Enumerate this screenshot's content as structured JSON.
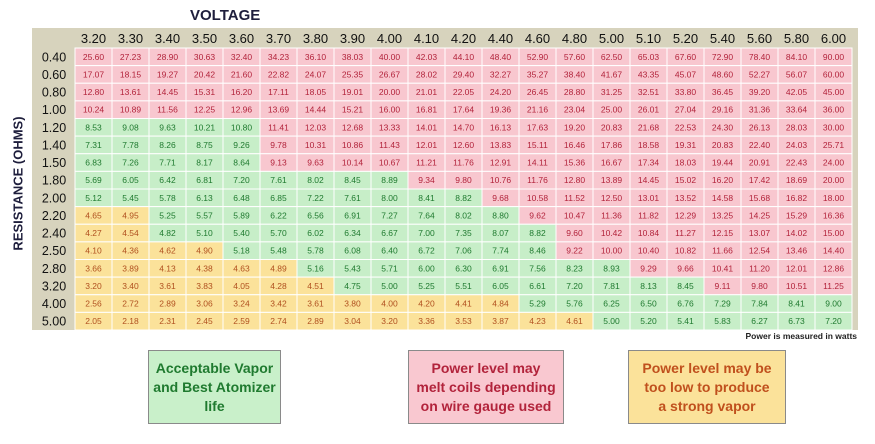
{
  "titles": {
    "voltage": "VOLTAGE",
    "resistance": "RESISTANCE (OHMS)",
    "power_note": "Power is measured in watts"
  },
  "legend": {
    "green": "Acceptable Vapor\nand Best Atomizer\nlife",
    "pink": "Power level may\nmelt coils depending\non wire gauge used",
    "yellow": "Power level may be\ntoo low to produce\na strong vapor"
  },
  "colors": {
    "pink": "#f8c7cf",
    "green": "#c7eec8",
    "yellow": "#fbe29a",
    "pink_text": "#b2233b",
    "green_text": "#1f7a2f",
    "yellow_text": "#b0501f",
    "frame": "#d7d3bd",
    "grid": "#ffffff"
  },
  "chart_data": {
    "type": "table",
    "xlabel": "VOLTAGE",
    "ylabel": "RESISTANCE (OHMS)",
    "voltages": [
      "3.20",
      "3.30",
      "3.40",
      "3.50",
      "3.60",
      "3.70",
      "3.80",
      "3.90",
      "4.00",
      "4.10",
      "4.20",
      "4.40",
      "4.60",
      "4.80",
      "5.00",
      "5.10",
      "5.20",
      "5.40",
      "5.60",
      "5.80",
      "6.00"
    ],
    "resistances": [
      "0.40",
      "0.60",
      "0.80",
      "1.00",
      "1.20",
      "1.40",
      "1.50",
      "1.80",
      "2.00",
      "2.20",
      "2.40",
      "2.50",
      "2.80",
      "3.20",
      "4.00",
      "5.00"
    ],
    "values": [
      [
        "25.60",
        "27.23",
        "28.90",
        "30.63",
        "32.40",
        "34.23",
        "36.10",
        "38.03",
        "40.00",
        "42.03",
        "44.10",
        "48.40",
        "52.90",
        "57.60",
        "62.50",
        "65.03",
        "67.60",
        "72.90",
        "78.40",
        "84.10",
        "90.00"
      ],
      [
        "17.07",
        "18.15",
        "19.27",
        "20.42",
        "21.60",
        "22.82",
        "24.07",
        "25.35",
        "26.67",
        "28.02",
        "29.40",
        "32.27",
        "35.27",
        "38.40",
        "41.67",
        "43.35",
        "45.07",
        "48.60",
        "52.27",
        "56.07",
        "60.00"
      ],
      [
        "12.80",
        "13.61",
        "14.45",
        "15.31",
        "16.20",
        "17.11",
        "18.05",
        "19.01",
        "20.00",
        "21.01",
        "22.05",
        "24.20",
        "26.45",
        "28.80",
        "31.25",
        "32.51",
        "33.80",
        "36.45",
        "39.20",
        "42.05",
        "45.00"
      ],
      [
        "10.24",
        "10.89",
        "11.56",
        "12.25",
        "12.96",
        "13.69",
        "14.44",
        "15.21",
        "16.00",
        "16.81",
        "17.64",
        "19.36",
        "21.16",
        "23.04",
        "25.00",
        "26.01",
        "27.04",
        "29.16",
        "31.36",
        "33.64",
        "36.00"
      ],
      [
        "8.53",
        "9.08",
        "9.63",
        "10.21",
        "10.80",
        "11.41",
        "12.03",
        "12.68",
        "13.33",
        "14.01",
        "14.70",
        "16.13",
        "17.63",
        "19.20",
        "20.83",
        "21.68",
        "22.53",
        "24.30",
        "26.13",
        "28.03",
        "30.00"
      ],
      [
        "7.31",
        "7.78",
        "8.26",
        "8.75",
        "9.26",
        "9.78",
        "10.31",
        "10.86",
        "11.43",
        "12.01",
        "12.60",
        "13.83",
        "15.11",
        "16.46",
        "17.86",
        "18.58",
        "19.31",
        "20.83",
        "22.40",
        "24.03",
        "25.71"
      ],
      [
        "6.83",
        "7.26",
        "7.71",
        "8.17",
        "8.64",
        "9.13",
        "9.63",
        "10.14",
        "10.67",
        "11.21",
        "11.76",
        "12.91",
        "14.11",
        "15.36",
        "16.67",
        "17.34",
        "18.03",
        "19.44",
        "20.91",
        "22.43",
        "24.00"
      ],
      [
        "5.69",
        "6.05",
        "6.42",
        "6.81",
        "7.20",
        "7.61",
        "8.02",
        "8.45",
        "8.89",
        "9.34",
        "9.80",
        "10.76",
        "11.76",
        "12.80",
        "13.89",
        "14.45",
        "15.02",
        "16.20",
        "17.42",
        "18.69",
        "20.00"
      ],
      [
        "5.12",
        "5.45",
        "5.78",
        "6.13",
        "6.48",
        "6.85",
        "7.22",
        "7.61",
        "8.00",
        "8.41",
        "8.82",
        "9.68",
        "10.58",
        "11.52",
        "12.50",
        "13.01",
        "13.52",
        "14.58",
        "15.68",
        "16.82",
        "18.00"
      ],
      [
        "4.65",
        "4.95",
        "5.25",
        "5.57",
        "5.89",
        "6.22",
        "6.56",
        "6.91",
        "7.27",
        "7.64",
        "8.02",
        "8.80",
        "9.62",
        "10.47",
        "11.36",
        "11.82",
        "12.29",
        "13.25",
        "14.25",
        "15.29",
        "16.36"
      ],
      [
        "4.27",
        "4.54",
        "4.82",
        "5.10",
        "5.40",
        "5.70",
        "6.02",
        "6.34",
        "6.67",
        "7.00",
        "7.35",
        "8.07",
        "8.82",
        "9.60",
        "10.42",
        "10.84",
        "11.27",
        "12.15",
        "13.07",
        "14.02",
        "15.00"
      ],
      [
        "4.10",
        "4.36",
        "4.62",
        "4.90",
        "5.18",
        "5.48",
        "5.78",
        "6.08",
        "6.40",
        "6.72",
        "7.06",
        "7.74",
        "8.46",
        "9.22",
        "10.00",
        "10.40",
        "10.82",
        "11.66",
        "12.54",
        "13.46",
        "14.40"
      ],
      [
        "3.66",
        "3.89",
        "4.13",
        "4.38",
        "4.63",
        "4.89",
        "5.16",
        "5.43",
        "5.71",
        "6.00",
        "6.30",
        "6.91",
        "7.56",
        "8.23",
        "8.93",
        "9.29",
        "9.66",
        "10.41",
        "11.20",
        "12.01",
        "12.86"
      ],
      [
        "3.20",
        "3.40",
        "3.61",
        "3.83",
        "4.05",
        "4.28",
        "4.51",
        "4.75",
        "5.00",
        "5.25",
        "5.51",
        "6.05",
        "6.61",
        "7.20",
        "7.81",
        "8.13",
        "8.45",
        "9.11",
        "9.80",
        "10.51",
        "11.25"
      ],
      [
        "2.56",
        "2.72",
        "2.89",
        "3.06",
        "3.24",
        "3.42",
        "3.61",
        "3.80",
        "4.00",
        "4.20",
        "4.41",
        "4.84",
        "5.29",
        "5.76",
        "6.25",
        "6.50",
        "6.76",
        "7.29",
        "7.84",
        "8.41",
        "9.00"
      ],
      [
        "2.05",
        "2.18",
        "2.31",
        "2.45",
        "2.59",
        "2.74",
        "2.89",
        "3.04",
        "3.20",
        "3.36",
        "3.53",
        "3.87",
        "4.23",
        "4.61",
        "5.00",
        "5.20",
        "5.41",
        "5.83",
        "6.27",
        "6.73",
        "7.20"
      ]
    ],
    "zones": [
      "PPPPPPPPPPPPPPPPPPPPP",
      "PPPPPPPPPPPPPPPPPPPPP",
      "PPPPPPPPPPPPPPPPPPPPP",
      "PPPPPPPPPPPPPPPPPPPPP",
      "GGGGGPPPPPPPPPPPPPPPP",
      "GGGGGPPPPPPPPPPPPPPPP",
      "GGGGGPPPPPPPPPPPPPPPP",
      "GGGGGGGGGPPPPPPPPPPPP",
      "GGGGGGGGGGGPPPPPPPPPP",
      "YYGGGGGGGGGGPPPPPPPPP",
      "YYGGGGGGGGGGGPPPPPPPP",
      "YYYYGGGGGGGGGPPPPPPPP",
      "YYYYYYGGGGGGGGGPPPPPP",
      "YYYYYYYGGGGGGGGGGPPPP",
      "YYYYYYYYYYYYGGGGGGGGG",
      "YYYYYYYYYYYYYYGGGGGGG"
    ],
    "value_units": "watts"
  }
}
